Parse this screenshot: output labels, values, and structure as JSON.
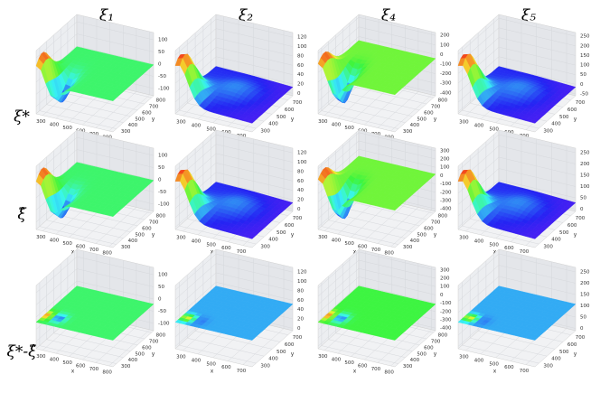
{
  "columns": [
    "ξ₁",
    "ξ₂",
    "ξ₄",
    "ξ₅"
  ],
  "rows": [
    "ξ*",
    "ξ̂",
    "ξ*-ξ̂"
  ],
  "panels": [
    [
      {
        "xlim": [
          250,
          830
        ],
        "xticks": [
          300,
          400,
          500,
          600,
          700,
          800
        ],
        "ylim": [
          250,
          830
        ],
        "yticks": [
          300,
          400,
          500,
          600,
          700,
          800
        ],
        "zlim": [
          -130,
          130
        ],
        "zticks": [
          -100,
          -50,
          0,
          50,
          100
        ],
        "xlabel": "x",
        "ylabel": "y"
      },
      {
        "xlim": [
          250,
          760
        ],
        "xticks": [
          300,
          400,
          500,
          600,
          700
        ],
        "ylim": [
          250,
          760
        ],
        "yticks": [
          300,
          400,
          500,
          600,
          700
        ],
        "zlim": [
          -5,
          130
        ],
        "zticks": [
          0,
          20,
          40,
          60,
          80,
          100,
          120
        ],
        "xlabel": "x",
        "ylabel": "y"
      },
      {
        "xlim": [
          250,
          830
        ],
        "xticks": [
          300,
          400,
          500,
          600,
          700,
          800
        ],
        "ylim": [
          250,
          830
        ],
        "yticks": [
          300,
          400,
          500,
          600,
          700,
          800
        ],
        "zlim": [
          -430,
          230
        ],
        "zticks": [
          -400,
          -300,
          -200,
          -100,
          0,
          100,
          200
        ],
        "xlabel": "x",
        "ylabel": "y"
      },
      {
        "xlim": [
          250,
          760
        ],
        "xticks": [
          300,
          400,
          500,
          600,
          700
        ],
        "ylim": [
          250,
          760
        ],
        "yticks": [
          300,
          400,
          500,
          600,
          700
        ],
        "zlim": [
          -60,
          270
        ],
        "zticks": [
          -50,
          0,
          50,
          100,
          150,
          200,
          250
        ],
        "xlabel": "x",
        "ylabel": "y"
      }
    ],
    [
      {
        "xlim": [
          250,
          830
        ],
        "xticks": [
          300,
          400,
          500,
          600,
          700,
          800
        ],
        "ylim": [
          250,
          830
        ],
        "yticks": [
          300,
          400,
          500,
          600,
          700,
          800
        ],
        "zlim": [
          -130,
          130
        ],
        "zticks": [
          -100,
          -50,
          0,
          50,
          100
        ],
        "xlabel": "x",
        "ylabel": "y"
      },
      {
        "xlim": [
          250,
          760
        ],
        "xticks": [
          300,
          400,
          500,
          600,
          700
        ],
        "ylim": [
          250,
          760
        ],
        "yticks": [
          300,
          400,
          500,
          600,
          700
        ],
        "zlim": [
          -5,
          130
        ],
        "zticks": [
          0,
          20,
          40,
          60,
          80,
          100,
          120
        ],
        "xlabel": "x",
        "ylabel": "y"
      },
      {
        "xlim": [
          250,
          830
        ],
        "xticks": [
          300,
          400,
          500,
          600,
          700,
          800
        ],
        "ylim": [
          250,
          830
        ],
        "yticks": [
          300,
          400,
          500,
          600,
          700,
          800
        ],
        "zlim": [
          -430,
          330
        ],
        "zticks": [
          -400,
          -300,
          -200,
          -100,
          0,
          100,
          200,
          300
        ],
        "xlabel": "x",
        "ylabel": "y"
      },
      {
        "xlim": [
          250,
          760
        ],
        "xticks": [
          300,
          400,
          500,
          600,
          700
        ],
        "ylim": [
          250,
          760
        ],
        "yticks": [
          300,
          400,
          500,
          600,
          700
        ],
        "zlim": [
          -10,
          270
        ],
        "zticks": [
          0,
          50,
          100,
          150,
          200,
          250
        ],
        "xlabel": "x",
        "ylabel": "y"
      }
    ],
    [
      {
        "xlim": [
          250,
          830
        ],
        "xticks": [
          300,
          400,
          500,
          600,
          700,
          800
        ],
        "ylim": [
          250,
          830
        ],
        "yticks": [
          300,
          400,
          500,
          600,
          700,
          800
        ],
        "zlim": [
          -130,
          130
        ],
        "zticks": [
          -100,
          -50,
          0,
          50,
          100
        ],
        "xlabel": "x",
        "ylabel": "y"
      },
      {
        "xlim": [
          250,
          760
        ],
        "xticks": [
          300,
          400,
          500,
          600,
          700
        ],
        "ylim": [
          250,
          760
        ],
        "yticks": [
          300,
          400,
          500,
          600,
          700
        ],
        "zlim": [
          -5,
          130
        ],
        "zticks": [
          0,
          20,
          40,
          60,
          80,
          100,
          120
        ],
        "xlabel": "x",
        "ylabel": "y"
      },
      {
        "xlim": [
          250,
          830
        ],
        "xticks": [
          300,
          400,
          500,
          600,
          700,
          800
        ],
        "ylim": [
          250,
          830
        ],
        "yticks": [
          300,
          400,
          500,
          600,
          700,
          800
        ],
        "zlim": [
          -430,
          330
        ],
        "zticks": [
          -400,
          -300,
          -200,
          -100,
          0,
          100,
          200,
          300
        ],
        "xlabel": "x",
        "ylabel": "y"
      },
      {
        "xlim": [
          250,
          760
        ],
        "xticks": [
          300,
          400,
          500,
          600,
          700
        ],
        "ylim": [
          250,
          760
        ],
        "yticks": [
          300,
          400,
          500,
          600,
          700
        ],
        "zlim": [
          -10,
          270
        ],
        "zticks": [
          0,
          50,
          100,
          150,
          200,
          250
        ],
        "xlabel": "x",
        "ylabel": "y"
      }
    ]
  ]
}
